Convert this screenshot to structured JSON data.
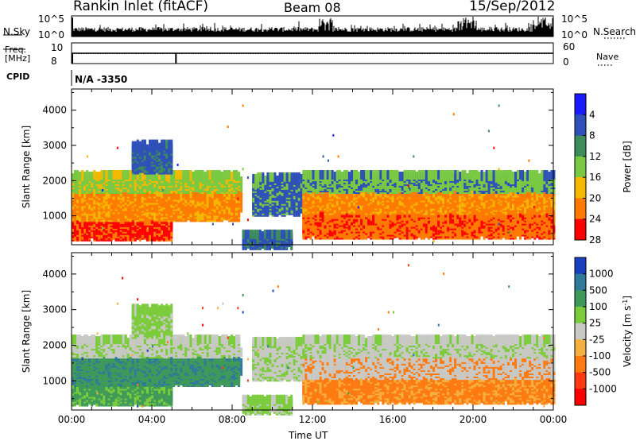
{
  "header": {
    "title": "Rankin Inlet (fitACF)",
    "beam": "Beam 08",
    "date": "15/Sep/2012"
  },
  "status_panels": {
    "nsky_label": "N.Sky",
    "nsearch_label": "N.Search",
    "nsky_ticks": [
      "10^5",
      "10^0"
    ],
    "nsearch_ticks": [
      "10^5",
      "10^0"
    ],
    "freq_label_line1": "Freq.",
    "freq_label_line2": "[MHz]",
    "freq_ticks": [
      "10",
      "8"
    ],
    "nave_label": "Nave",
    "nave_ticks": [
      "60",
      "0"
    ],
    "cpid_label": "CPID",
    "cpid_value": "N/A -3350"
  },
  "chart_data": [
    {
      "type": "heatmap",
      "title": "",
      "xlabel": "Time UT",
      "ylabel": "Slant Range [km]",
      "xlim": [
        0,
        24
      ],
      "ylim": [
        180,
        4600
      ],
      "x_ticks": [
        "00:00",
        "04:00",
        "08:00",
        "12:00",
        "16:00",
        "20:00",
        "00:00"
      ],
      "y_ticks": [
        1000,
        2000,
        3000,
        4000
      ],
      "colorbar": {
        "label": "Power [dB]",
        "ticks": [
          "4",
          "8",
          "12",
          "16",
          "20",
          "24",
          "28"
        ],
        "colors": [
          "#1a1aff",
          "#2e50b8",
          "#3d8c5c",
          "#7ac943",
          "#f5b800",
          "#ff7a00",
          "#ff0000"
        ]
      }
    },
    {
      "type": "heatmap",
      "title": "",
      "xlabel": "Time UT",
      "ylabel": "Slant Range [km]",
      "xlim": [
        0,
        24
      ],
      "ylim": [
        180,
        4600
      ],
      "x_ticks": [
        "00:00",
        "04:00",
        "08:00",
        "12:00",
        "16:00",
        "20:00",
        "00:00"
      ],
      "y_ticks": [
        1000,
        2000,
        3000,
        4000
      ],
      "colorbar": {
        "label": "Velocity [m s^-1]",
        "ticks": [
          "1000",
          "500",
          "100",
          "25",
          "-25",
          "-100",
          "-500",
          "-1000"
        ],
        "colors": [
          "#1a3fbf",
          "#2f7a9a",
          "#3f9a5a",
          "#7acc3a",
          "#c8c8c4",
          "#f5b042",
          "#ff7a10",
          "#ff3a10",
          "#ff0000"
        ]
      }
    }
  ]
}
